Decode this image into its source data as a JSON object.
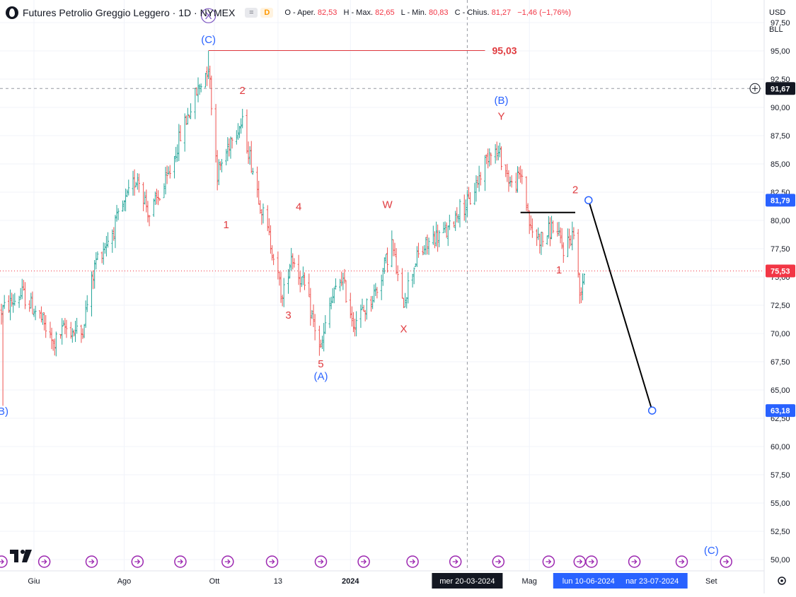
{
  "header": {
    "title": "Futures Petrolio Greggio Leggero · 1D · NYMEX",
    "badge_eq": "=",
    "badge_d": "D",
    "ohlc": [
      {
        "label": "O",
        "prefix": "Aper.",
        "value": "82,53"
      },
      {
        "label": "H",
        "prefix": "Max.",
        "value": "82,65"
      },
      {
        "label": "L",
        "prefix": "Min.",
        "value": "80,83"
      },
      {
        "label": "C",
        "prefix": "Chius.",
        "value": "81,27"
      }
    ],
    "change": "−1,46 (−1,76%)"
  },
  "axis_controls": {
    "currency": "USD",
    "unit": "BLL"
  },
  "colors": {
    "up": "#26a69a",
    "down": "#ef5350",
    "wave_red": "#e03a3e",
    "wave_blue": "#2962ff",
    "wave_purple": "#7e57c2",
    "grid": "#f0f3fa",
    "axis_text": "#131722",
    "label_blue_bg": "#2962ff",
    "label_red_bg": "#f23645",
    "label_dark_bg": "#131722"
  },
  "chart_data": {
    "type": "candlestick",
    "ylim": [
      49.0,
      99.5
    ],
    "y_ticks": [
      "97,50",
      "95,00",
      "92,50",
      "90,00",
      "87,50",
      "85,00",
      "82,50",
      "80,00",
      "77,50",
      "75,00",
      "72,50",
      "70,00",
      "67,50",
      "65,00",
      "62,50",
      "60,00",
      "57,50",
      "55,00",
      "52,50",
      "50,00"
    ],
    "y_tick_values": [
      97.5,
      95.0,
      92.5,
      90.0,
      87.5,
      85.0,
      82.5,
      80.0,
      77.5,
      75.0,
      72.5,
      70.0,
      67.5,
      65.0,
      62.5,
      60.0,
      57.5,
      55.0,
      52.5,
      50.0
    ],
    "x_labels": [
      {
        "text": "Giu",
        "date": "2023-06-01"
      },
      {
        "text": "Ago",
        "date": "2023-08-01"
      },
      {
        "text": "Ott",
        "date": "2023-10-01"
      },
      {
        "text": "13",
        "date": "2023-11-13"
      },
      {
        "text": "2024",
        "date": "2024-01-01",
        "bold": true
      },
      {
        "text": "Mag",
        "date": "2024-05-01"
      },
      {
        "text": "Set",
        "date": "2024-09-01"
      }
    ],
    "x_range": [
      "2023-05-10",
      "2024-10-01"
    ],
    "price_anchors": [
      {
        "date": "2023-05-10",
        "price": 72.0
      },
      {
        "date": "2023-05-24",
        "price": 73.5
      },
      {
        "date": "2023-06-05",
        "price": 71.5
      },
      {
        "date": "2023-06-14",
        "price": 69.0
      },
      {
        "date": "2023-06-22",
        "price": 70.5
      },
      {
        "date": "2023-07-03",
        "price": 70.0
      },
      {
        "date": "2023-07-13",
        "price": 76.5
      },
      {
        "date": "2023-07-24",
        "price": 79.0
      },
      {
        "date": "2023-08-10",
        "price": 84.0
      },
      {
        "date": "2023-08-18",
        "price": 80.5
      },
      {
        "date": "2023-08-30",
        "price": 83.5
      },
      {
        "date": "2023-09-08",
        "price": 87.5
      },
      {
        "date": "2023-09-18",
        "price": 91.0
      },
      {
        "date": "2023-09-27",
        "price": 93.7
      },
      {
        "date": "2023-10-03",
        "price": 84.2
      },
      {
        "date": "2023-10-09",
        "price": 86.0
      },
      {
        "date": "2023-10-13",
        "price": 87.8
      },
      {
        "date": "2023-10-20",
        "price": 88.5
      },
      {
        "date": "2023-10-27",
        "price": 84.5
      },
      {
        "date": "2023-11-03",
        "price": 80.5
      },
      {
        "date": "2023-11-10",
        "price": 77.0
      },
      {
        "date": "2023-11-16",
        "price": 73.0
      },
      {
        "date": "2023-11-22",
        "price": 77.0
      },
      {
        "date": "2023-12-01",
        "price": 74.0
      },
      {
        "date": "2023-12-08",
        "price": 70.5
      },
      {
        "date": "2023-12-12",
        "price": 68.5
      },
      {
        "date": "2023-12-18",
        "price": 72.5
      },
      {
        "date": "2023-12-26",
        "price": 75.0
      },
      {
        "date": "2024-01-03",
        "price": 71.0
      },
      {
        "date": "2024-01-10",
        "price": 72.0
      },
      {
        "date": "2024-01-19",
        "price": 74.0
      },
      {
        "date": "2024-01-29",
        "price": 78.0
      },
      {
        "date": "2024-02-05",
        "price": 72.5
      },
      {
        "date": "2024-02-14",
        "price": 76.5
      },
      {
        "date": "2024-02-26",
        "price": 78.5
      },
      {
        "date": "2024-03-07",
        "price": 79.0
      },
      {
        "date": "2024-03-14",
        "price": 81.0
      },
      {
        "date": "2024-03-21",
        "price": 81.5
      },
      {
        "date": "2024-04-05",
        "price": 86.5
      },
      {
        "date": "2024-04-12",
        "price": 85.5
      },
      {
        "date": "2024-04-19",
        "price": 83.0
      },
      {
        "date": "2024-04-26",
        "price": 84.0
      },
      {
        "date": "2024-05-02",
        "price": 79.0
      },
      {
        "date": "2024-05-10",
        "price": 78.3
      },
      {
        "date": "2024-05-17",
        "price": 79.5
      },
      {
        "date": "2024-05-24",
        "price": 77.5
      },
      {
        "date": "2024-05-31",
        "price": 79.0
      },
      {
        "date": "2024-06-04",
        "price": 73.5
      },
      {
        "date": "2024-06-07",
        "price": 75.5
      }
    ],
    "annotations": {
      "resistance": {
        "value": 95.03,
        "label": "95,03",
        "start": "2023-09-27",
        "end": "2024-04-01"
      },
      "support_line": {
        "value": 80.7,
        "start": "2024-04-25",
        "end": "2024-06-01"
      },
      "projection": {
        "from": {
          "date": "2024-06-10",
          "price": 81.79
        },
        "to": {
          "date": "2024-07-23",
          "price": 63.18
        }
      },
      "crosshair": {
        "date": "2024-03-20",
        "price": 91.67
      },
      "last_price": 75.53,
      "wave_labels": [
        {
          "text": "(B)",
          "date": "2023-05-10",
          "price": 62.8,
          "color": "blue"
        },
        {
          "text": "X",
          "date": "2023-09-27",
          "price": 97.8,
          "color": "purple",
          "circled": true
        },
        {
          "text": "(C)",
          "date": "2023-09-27",
          "price": 95.7,
          "color": "blue"
        },
        {
          "text": "2",
          "date": "2023-10-20",
          "price": 91.2,
          "color": "red"
        },
        {
          "text": "1",
          "date": "2023-10-09",
          "price": 79.3,
          "color": "red"
        },
        {
          "text": "4",
          "date": "2023-11-27",
          "price": 80.9,
          "color": "red"
        },
        {
          "text": "3",
          "date": "2023-11-20",
          "price": 71.3,
          "color": "red"
        },
        {
          "text": "5",
          "date": "2023-12-12",
          "price": 67.0,
          "color": "red"
        },
        {
          "text": "(A)",
          "date": "2023-12-12",
          "price": 65.9,
          "color": "blue"
        },
        {
          "text": "W",
          "date": "2024-01-26",
          "price": 81.1,
          "color": "red"
        },
        {
          "text": "X",
          "date": "2024-02-06",
          "price": 70.1,
          "color": "red"
        },
        {
          "text": "(B)",
          "date": "2024-04-12",
          "price": 90.3,
          "color": "blue"
        },
        {
          "text": "Y",
          "date": "2024-04-12",
          "price": 88.9,
          "color": "red"
        },
        {
          "text": "2",
          "date": "2024-06-01",
          "price": 82.4,
          "color": "red"
        },
        {
          "text": "1",
          "date": "2024-05-21",
          "price": 75.3,
          "color": "red"
        },
        {
          "text": "(C)",
          "date": "2024-09-01",
          "price": 50.5,
          "color": "blue"
        }
      ]
    },
    "price_labels": [
      {
        "text": "91,67",
        "value": 91.67,
        "style": "dark"
      },
      {
        "text": "81,79",
        "value": 81.79,
        "style": "blue"
      },
      {
        "text": "75,53",
        "value": 75.53,
        "style": "red"
      },
      {
        "text": "63,18",
        "value": 63.18,
        "style": "blue"
      }
    ],
    "date_labels": [
      {
        "text": "mer 20-03-2024",
        "date": "2024-03-20",
        "style": "dark"
      },
      {
        "text": "lun 10-06-2024",
        "date": "2024-06-10",
        "style": "blue"
      },
      {
        "text": "nar 23-07-2024",
        "date": "2024-07-23",
        "style": "blue"
      }
    ],
    "event_markers": [
      "2023-05-10",
      "2023-06-08",
      "2023-07-10",
      "2023-08-10",
      "2023-09-08",
      "2023-10-10",
      "2023-11-09",
      "2023-12-12",
      "2024-01-10",
      "2024-02-12",
      "2024-03-12",
      "2024-04-10",
      "2024-05-14",
      "2024-06-04",
      "2024-06-12",
      "2024-07-11",
      "2024-08-12",
      "2024-09-11"
    ]
  }
}
